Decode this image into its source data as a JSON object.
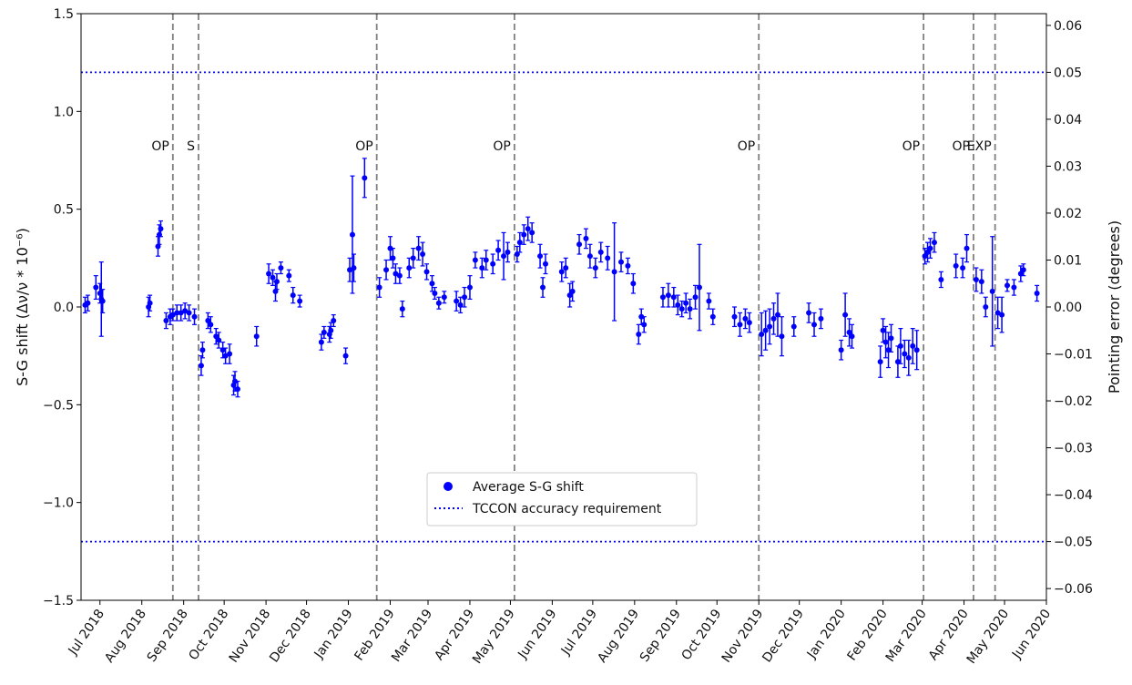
{
  "chart_data": {
    "type": "scatter",
    "ylabel_left": "S-G shift (Δν/ν * 10⁻⁶)",
    "ylabel_right": "Pointing error (degrees)",
    "ylim_left": [
      -1.5,
      1.5
    ],
    "ylim_right": [
      -0.0625,
      0.0625
    ],
    "yticks_left": [
      "1.5",
      "1.0",
      "0.5",
      "0.0",
      "−0.5",
      "−1.0",
      "−1.5"
    ],
    "yticks_right": [
      "0.06",
      "0.05",
      "0.04",
      "0.03",
      "0.02",
      "0.01",
      "0.00",
      "−0.01",
      "−0.02",
      "−0.03",
      "−0.04",
      "−0.05",
      "−0.06"
    ],
    "x_range": [
      "2018-06-17",
      "2020-06-01"
    ],
    "xtick_labels": [
      "Jul 2018",
      "Aug 2018",
      "Sep 2018",
      "Oct 2018",
      "Nov 2018",
      "Dec 2018",
      "Jan 2019",
      "Feb 2019",
      "Mar 2019",
      "Apr 2019",
      "May 2019",
      "Jun 2019",
      "Jul 2019",
      "Aug 2019",
      "Sep 2019",
      "Oct 2019",
      "Nov 2019",
      "Dec 2019",
      "Jan 2020",
      "Feb 2020",
      "Mar 2020",
      "Apr 2020",
      "May 2020",
      "Jun 2020"
    ],
    "legend_position": "lower-center",
    "legend": [
      "Average S-G shift",
      "TCCON accuracy requirement"
    ],
    "requirement_lines": [
      1.2,
      -1.2
    ],
    "events": [
      {
        "label": "OP",
        "date": "2018-08-24"
      },
      {
        "label": "S",
        "date": "2018-09-12"
      },
      {
        "label": "OP",
        "date": "2019-01-22"
      },
      {
        "label": "OP",
        "date": "2019-05-04"
      },
      {
        "label": "OP",
        "date": "2019-11-01"
      },
      {
        "label": "OP",
        "date": "2020-03-02"
      },
      {
        "label": "OP",
        "date": "2020-04-08"
      },
      {
        "label": "EXP",
        "date": "2020-04-24"
      }
    ],
    "colors": {
      "points": "#0000ff",
      "requirement": "#0000ff",
      "events": "#808080"
    },
    "series": [
      {
        "name": "Average S-G shift",
        "points": [
          [
            "2018-06-20",
            0.01,
            0.04
          ],
          [
            "2018-06-22",
            0.02,
            0.04
          ],
          [
            "2018-06-28",
            0.1,
            0.06
          ],
          [
            "2018-07-01",
            0.07,
            0.05
          ],
          [
            "2018-07-02",
            0.04,
            0.19
          ],
          [
            "2018-07-03",
            0.03,
            0.06
          ],
          [
            "2018-08-13",
            0.31,
            0.05
          ],
          [
            "2018-08-14",
            0.37,
            0.05
          ],
          [
            "2018-08-15",
            0.4,
            0.04
          ],
          [
            "2018-08-06",
            0.0,
            0.05
          ],
          [
            "2018-08-07",
            0.02,
            0.04
          ],
          [
            "2018-08-19",
            -0.07,
            0.04
          ],
          [
            "2018-08-22",
            -0.05,
            0.04
          ],
          [
            "2018-08-24",
            -0.04,
            0.03
          ],
          [
            "2018-08-27",
            -0.03,
            0.04
          ],
          [
            "2018-08-30",
            -0.03,
            0.04
          ],
          [
            "2018-09-02",
            -0.02,
            0.04
          ],
          [
            "2018-09-05",
            -0.03,
            0.04
          ],
          [
            "2018-09-09",
            -0.05,
            0.04
          ],
          [
            "2018-09-14",
            -0.3,
            0.05
          ],
          [
            "2018-09-15",
            -0.22,
            0.04
          ],
          [
            "2018-09-19",
            -0.07,
            0.04
          ],
          [
            "2018-09-21",
            -0.09,
            0.04
          ],
          [
            "2018-09-25",
            -0.15,
            0.04
          ],
          [
            "2018-09-27",
            -0.17,
            0.04
          ],
          [
            "2018-09-30",
            -0.22,
            0.04
          ],
          [
            "2018-10-02",
            -0.25,
            0.04
          ],
          [
            "2018-10-05",
            -0.24,
            0.05
          ],
          [
            "2018-10-08",
            -0.4,
            0.05
          ],
          [
            "2018-10-09",
            -0.38,
            0.05
          ],
          [
            "2018-10-11",
            -0.42,
            0.04
          ],
          [
            "2018-10-25",
            -0.15,
            0.05
          ],
          [
            "2018-11-03",
            0.17,
            0.05
          ],
          [
            "2018-11-06",
            0.15,
            0.04
          ],
          [
            "2018-11-08",
            0.08,
            0.05
          ],
          [
            "2018-11-09",
            0.13,
            0.04
          ],
          [
            "2018-11-12",
            0.2,
            0.03
          ],
          [
            "2018-11-18",
            0.16,
            0.03
          ],
          [
            "2018-11-21",
            0.06,
            0.04
          ],
          [
            "2018-11-26",
            0.03,
            0.03
          ],
          [
            "2018-12-12",
            -0.18,
            0.04
          ],
          [
            "2018-12-14",
            -0.13,
            0.03
          ],
          [
            "2018-12-18",
            -0.14,
            0.04
          ],
          [
            "2018-12-19",
            -0.12,
            0.04
          ],
          [
            "2018-12-21",
            -0.07,
            0.03
          ],
          [
            "2018-12-30",
            -0.25,
            0.04
          ],
          [
            "2019-01-02",
            0.19,
            0.06
          ],
          [
            "2019-01-04",
            0.37,
            0.3
          ],
          [
            "2019-01-05",
            0.2,
            0.07
          ],
          [
            "2019-01-13",
            0.66,
            0.1
          ],
          [
            "2019-01-24",
            0.1,
            0.05
          ],
          [
            "2019-01-29",
            0.19,
            0.05
          ],
          [
            "2019-02-01",
            0.3,
            0.06
          ],
          [
            "2019-02-03",
            0.25,
            0.05
          ],
          [
            "2019-02-05",
            0.17,
            0.05
          ],
          [
            "2019-02-08",
            0.16,
            0.04
          ],
          [
            "2019-02-10",
            -0.01,
            0.04
          ],
          [
            "2019-02-15",
            0.2,
            0.05
          ],
          [
            "2019-02-18",
            0.25,
            0.05
          ],
          [
            "2019-02-22",
            0.3,
            0.06
          ],
          [
            "2019-02-25",
            0.27,
            0.06
          ],
          [
            "2019-02-28",
            0.18,
            0.04
          ],
          [
            "2019-03-04",
            0.12,
            0.04
          ],
          [
            "2019-03-06",
            0.07,
            0.03
          ],
          [
            "2019-03-09",
            0.02,
            0.03
          ],
          [
            "2019-03-13",
            0.05,
            0.03
          ],
          [
            "2019-03-22",
            0.03,
            0.05
          ],
          [
            "2019-03-25",
            0.01,
            0.04
          ],
          [
            "2019-03-28",
            0.05,
            0.05
          ],
          [
            "2019-04-01",
            0.1,
            0.06
          ],
          [
            "2019-04-05",
            0.24,
            0.04
          ],
          [
            "2019-04-10",
            0.2,
            0.05
          ],
          [
            "2019-04-13",
            0.24,
            0.05
          ],
          [
            "2019-04-18",
            0.22,
            0.05
          ],
          [
            "2019-04-22",
            0.29,
            0.05
          ],
          [
            "2019-04-26",
            0.26,
            0.12
          ],
          [
            "2019-04-29",
            0.28,
            0.05
          ],
          [
            "2019-05-06",
            0.27,
            0.04
          ],
          [
            "2019-05-08",
            0.33,
            0.05
          ],
          [
            "2019-05-11",
            0.37,
            0.05
          ],
          [
            "2019-05-14",
            0.4,
            0.06
          ],
          [
            "2019-05-17",
            0.38,
            0.05
          ],
          [
            "2019-05-23",
            0.26,
            0.06
          ],
          [
            "2019-05-25",
            0.1,
            0.05
          ],
          [
            "2019-05-27",
            0.22,
            0.05
          ],
          [
            "2019-06-08",
            0.18,
            0.05
          ],
          [
            "2019-06-11",
            0.2,
            0.05
          ],
          [
            "2019-06-14",
            0.06,
            0.06
          ],
          [
            "2019-06-16",
            0.08,
            0.05
          ],
          [
            "2019-06-21",
            0.32,
            0.05
          ],
          [
            "2019-06-26",
            0.35,
            0.05
          ],
          [
            "2019-06-29",
            0.26,
            0.06
          ],
          [
            "2019-07-03",
            0.2,
            0.05
          ],
          [
            "2019-07-07",
            0.28,
            0.05
          ],
          [
            "2019-07-12",
            0.25,
            0.06
          ],
          [
            "2019-07-17",
            0.18,
            0.25
          ],
          [
            "2019-07-22",
            0.23,
            0.05
          ],
          [
            "2019-07-27",
            0.21,
            0.04
          ],
          [
            "2019-07-31",
            0.12,
            0.05
          ],
          [
            "2019-08-04",
            -0.14,
            0.05
          ],
          [
            "2019-08-06",
            -0.05,
            0.04
          ],
          [
            "2019-08-08",
            -0.09,
            0.04
          ],
          [
            "2019-08-22",
            0.05,
            0.05
          ],
          [
            "2019-08-26",
            0.06,
            0.06
          ],
          [
            "2019-08-30",
            0.05,
            0.05
          ],
          [
            "2019-09-02",
            0.01,
            0.05
          ],
          [
            "2019-09-05",
            -0.01,
            0.04
          ],
          [
            "2019-09-08",
            0.02,
            0.05
          ],
          [
            "2019-09-11",
            -0.01,
            0.05
          ],
          [
            "2019-09-15",
            0.05,
            0.06
          ],
          [
            "2019-09-18",
            0.1,
            0.22
          ],
          [
            "2019-09-25",
            0.03,
            0.04
          ],
          [
            "2019-09-28",
            -0.05,
            0.04
          ],
          [
            "2019-10-14",
            -0.05,
            0.05
          ],
          [
            "2019-10-18",
            -0.09,
            0.06
          ],
          [
            "2019-10-22",
            -0.06,
            0.05
          ],
          [
            "2019-10-25",
            -0.08,
            0.05
          ],
          [
            "2019-11-03",
            -0.14,
            0.11
          ],
          [
            "2019-11-06",
            -0.12,
            0.1
          ],
          [
            "2019-11-09",
            -0.1,
            0.09
          ],
          [
            "2019-11-12",
            -0.06,
            0.08
          ],
          [
            "2019-11-15",
            -0.04,
            0.11
          ],
          [
            "2019-11-18",
            -0.15,
            0.1
          ],
          [
            "2019-11-27",
            -0.1,
            0.05
          ],
          [
            "2019-12-08",
            -0.03,
            0.05
          ],
          [
            "2019-12-12",
            -0.09,
            0.06
          ],
          [
            "2019-12-17",
            -0.06,
            0.05
          ],
          [
            "2020-01-01",
            -0.22,
            0.05
          ],
          [
            "2020-01-04",
            -0.04,
            0.11
          ],
          [
            "2020-01-07",
            -0.13,
            0.07
          ],
          [
            "2020-01-09",
            -0.15,
            0.06
          ],
          [
            "2020-01-30",
            -0.28,
            0.08
          ],
          [
            "2020-02-01",
            -0.12,
            0.06
          ],
          [
            "2020-02-03",
            -0.18,
            0.08
          ],
          [
            "2020-02-05",
            -0.22,
            0.09
          ],
          [
            "2020-02-07",
            -0.16,
            0.07
          ],
          [
            "2020-02-12",
            -0.28,
            0.08
          ],
          [
            "2020-02-14",
            -0.2,
            0.09
          ],
          [
            "2020-02-17",
            -0.24,
            0.07
          ],
          [
            "2020-02-20",
            -0.26,
            0.09
          ],
          [
            "2020-02-23",
            -0.2,
            0.09
          ],
          [
            "2020-02-26",
            -0.22,
            0.1
          ],
          [
            "2020-03-03",
            0.26,
            0.04
          ],
          [
            "2020-03-05",
            0.28,
            0.05
          ],
          [
            "2020-03-07",
            0.3,
            0.05
          ],
          [
            "2020-03-10",
            0.33,
            0.05
          ],
          [
            "2020-03-15",
            0.14,
            0.04
          ],
          [
            "2020-03-26",
            0.21,
            0.06
          ],
          [
            "2020-03-31",
            0.2,
            0.05
          ],
          [
            "2020-04-03",
            0.3,
            0.07
          ],
          [
            "2020-04-10",
            0.14,
            0.06
          ],
          [
            "2020-04-14",
            0.13,
            0.06
          ],
          [
            "2020-04-17",
            0.0,
            0.05
          ],
          [
            "2020-04-22",
            0.08,
            0.28
          ],
          [
            "2020-04-26",
            -0.03,
            0.08
          ],
          [
            "2020-04-29",
            -0.04,
            0.09
          ],
          [
            "2020-05-03",
            0.11,
            0.03
          ],
          [
            "2020-05-08",
            0.1,
            0.04
          ],
          [
            "2020-05-13",
            0.17,
            0.04
          ],
          [
            "2020-05-15",
            0.19,
            0.03
          ],
          [
            "2020-05-25",
            0.07,
            0.04
          ]
        ]
      }
    ]
  }
}
